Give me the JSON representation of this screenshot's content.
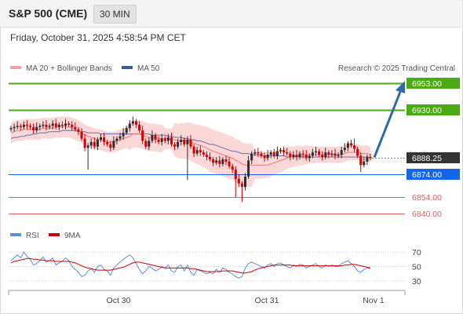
{
  "header": {
    "title": "S&P 500 (CME)",
    "timeframe": "30 MIN"
  },
  "datetime": "Friday, October 31, 2025 4:58:54 PM CET",
  "legend": {
    "ma20_label": "MA 20 + Bollinger Bands",
    "ma50_label": "MA 50",
    "credit": "Research © 2025 Trading Central",
    "rsi_label": "RSI",
    "ma9_label": "9MA"
  },
  "colors": {
    "up_candle": "#2e2e2e",
    "down_candle": "#d20000",
    "bollinger": "#fbd0d0",
    "ma20": "#f07878",
    "ma50": "#6a6fa8",
    "resistance": "#4caa14",
    "pivot": "#1565e8",
    "support": "#e06060",
    "current": "#333333",
    "arrow": "#2f6aa8",
    "rsi": "#5b8fd8",
    "rsi_ma": "#d20000"
  },
  "levels": [
    {
      "label": "6953.00",
      "value": 6953,
      "type": "resistance"
    },
    {
      "label": "6930.00",
      "value": 6930,
      "type": "resistance"
    },
    {
      "label": "6888.25",
      "value": 6888.25,
      "type": "current"
    },
    {
      "label": "6874.00",
      "value": 6874,
      "type": "pivot"
    },
    {
      "label": "6854.00",
      "value": 6854,
      "type": "support"
    },
    {
      "label": "6840.00",
      "value": 6840,
      "type": "support"
    }
  ],
  "rsi_ticks": [
    "70",
    "50",
    "30"
  ],
  "x_labels": [
    "Oct 30",
    "Oct 31",
    "Nov 1"
  ],
  "chart_data": {
    "type": "candlestick",
    "price_range": [
      6833,
      6958
    ],
    "close": [
      6914,
      6915,
      6916,
      6915,
      6917,
      6916,
      6915,
      6912,
      6915,
      6916,
      6917,
      6915,
      6916,
      6918,
      6915,
      6917,
      6916,
      6918,
      6917,
      6915,
      6913,
      6911,
      6905,
      6897,
      6899,
      6902,
      6898,
      6904,
      6906,
      6902,
      6900,
      6897,
      6903,
      6905,
      6907,
      6910,
      6914,
      6918,
      6920,
      6917,
      6912,
      6903,
      6898,
      6903,
      6908,
      6904,
      6902,
      6905,
      6903,
      6906,
      6900,
      6898,
      6902,
      6904,
      6900,
      6904,
      6898,
      6892,
      6895,
      6893,
      6891,
      6889,
      6887,
      6884,
      6886,
      6883,
      6887,
      6885,
      6881,
      6878,
      6870,
      6866,
      6863,
      6872,
      6886,
      6892,
      6893,
      6892,
      6890,
      6888,
      6891,
      6893,
      6890,
      6894,
      6895,
      6893,
      6892,
      6889,
      6891,
      6889,
      6892,
      6891,
      6888,
      6890,
      6893,
      6894,
      6891,
      6889,
      6893,
      6891,
      6892,
      6890,
      6891,
      6895,
      6897,
      6901,
      6899,
      6896,
      6890,
      6882,
      6885,
      6889,
      6888
    ],
    "ma20": [
      6910,
      6911,
      6912,
      6912,
      6913,
      6913,
      6913,
      6913,
      6913,
      6913,
      6914,
      6914,
      6914,
      6914,
      6915,
      6915,
      6915,
      6915,
      6915,
      6914,
      6913,
      6912,
      6910,
      6908,
      6907,
      6906,
      6905,
      6904,
      6904,
      6903,
      6902,
      6902,
      6902,
      6903,
      6904,
      6905,
      6906,
      6907,
      6909,
      6909,
      6909,
      6908,
      6907,
      6906,
      6906,
      6906,
      6905,
      6905,
      6905,
      6905,
      6904,
      6904,
      6903,
      6903,
      6903,
      6903,
      6902,
      6901,
      6900,
      6899,
      6898,
      6897,
      6895,
      6894,
      6893,
      6892,
      6891,
      6890,
      6889,
      6888,
      6886,
      6885,
      6883,
      6882,
      6882,
      6882,
      6882,
      6882,
      6882,
      6882,
      6882,
      6883,
      6884,
      6885,
      6886,
      6887,
      6888,
      6889,
      6889,
      6890,
      6890,
      6890,
      6891,
      6891,
      6891,
      6891,
      6891,
      6891,
      6891,
      6891,
      6891,
      6891,
      6891,
      6891,
      6892,
      6893,
      6893,
      6893,
      6893,
      6892,
      6892,
      6892,
      6891
    ],
    "ma50": [
      6905,
      6906,
      6906,
      6907,
      6907,
      6908,
      6908,
      6909,
      6909,
      6910,
      6910,
      6910,
      6911,
      6911,
      6911,
      6911,
      6912,
      6912,
      6912,
      6912,
      6912,
      6911,
      6911,
      6911,
      6910,
      6910,
      6910,
      6910,
      6909,
      6909,
      6909,
      6909,
      6909,
      6909,
      6909,
      6909,
      6909,
      6909,
      6909,
      6909,
      6909,
      6909,
      6909,
      6909,
      6908,
      6908,
      6908,
      6908,
      6908,
      6907,
      6907,
      6906,
      6906,
      6906,
      6905,
      6905,
      6904,
      6904,
      6903,
      6903,
      6902,
      6901,
      6900,
      6900,
      6899,
      6898,
      6897,
      6896,
      6895,
      6894,
      6894,
      6893,
      6892,
      6892,
      6892,
      6891,
      6891,
      6891,
      6890,
      6890,
      6890,
      6890,
      6890,
      6890,
      6890,
      6890,
      6889,
      6889,
      6889,
      6889,
      6889,
      6889,
      6889,
      6889,
      6889,
      6889,
      6889,
      6889,
      6889,
      6889,
      6889,
      6889,
      6889,
      6889,
      6889,
      6889,
      6889,
      6889,
      6889,
      6889,
      6889,
      6889,
      6889
    ],
    "rsi": [
      58,
      62,
      66,
      62,
      70,
      64,
      60,
      52,
      54,
      58,
      63,
      56,
      58,
      62,
      52,
      55,
      57,
      62,
      58,
      50,
      46,
      42,
      36,
      38,
      44,
      47,
      42,
      50,
      52,
      46,
      44,
      38,
      48,
      52,
      56,
      60,
      63,
      66,
      62,
      54,
      46,
      40,
      44,
      50,
      48,
      44,
      46,
      50,
      48,
      52,
      44,
      42,
      50,
      52,
      44,
      52,
      42,
      38,
      46,
      44,
      42,
      40,
      42,
      40,
      46,
      42,
      48,
      46,
      42,
      40,
      36,
      34,
      36,
      48,
      54,
      56,
      54,
      52,
      50,
      48,
      52,
      54,
      50,
      54,
      55,
      52,
      50,
      48,
      52,
      50,
      53,
      52,
      48,
      50,
      52,
      54,
      50,
      48,
      52,
      50,
      52,
      50,
      50,
      54,
      56,
      58,
      54,
      50,
      44,
      42,
      46,
      48,
      47
    ],
    "rsi_ma9": [
      55,
      57,
      58,
      59,
      60,
      61,
      61,
      60,
      60,
      59,
      59,
      58,
      58,
      58,
      57,
      57,
      57,
      57,
      57,
      56,
      55,
      53,
      51,
      49,
      48,
      47,
      46,
      45,
      45,
      45,
      45,
      45,
      46,
      47,
      48,
      49,
      51,
      53,
      55,
      56,
      56,
      55,
      54,
      53,
      52,
      51,
      50,
      49,
      48,
      48,
      48,
      48,
      48,
      48,
      48,
      48,
      47,
      47,
      46,
      45,
      44,
      43,
      43,
      43,
      43,
      43,
      44,
      44,
      44,
      44,
      43,
      42,
      41,
      41,
      42,
      43,
      45,
      47,
      48,
      49,
      50,
      51,
      52,
      52,
      52,
      52,
      52,
      52,
      51,
      51,
      51,
      51,
      51,
      51,
      51,
      51,
      51,
      51,
      51,
      51,
      51,
      51,
      51,
      51,
      52,
      52,
      53,
      53,
      52,
      51,
      50,
      49,
      48
    ]
  }
}
